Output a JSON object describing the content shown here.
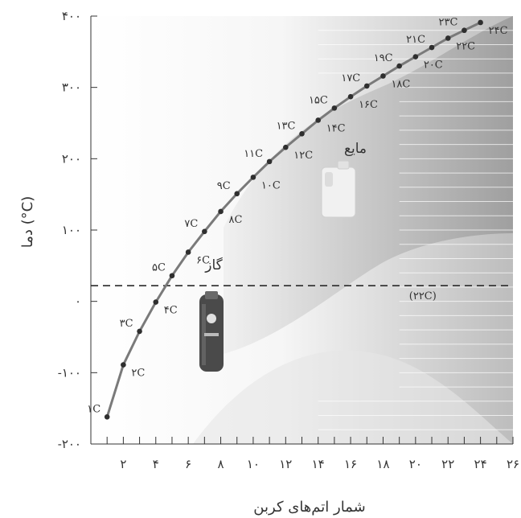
{
  "chart_data": {
    "type": "line",
    "xlabel": "شمار اتم‌های کربن",
    "ylabel": "دما (°C)",
    "xlim": [
      0,
      26
    ],
    "ylim": [
      -200,
      400
    ],
    "x_ticks": [
      {
        "v": 2,
        "label": "۲"
      },
      {
        "v": 4,
        "label": "۴"
      },
      {
        "v": 6,
        "label": "۶"
      },
      {
        "v": 8,
        "label": "۸"
      },
      {
        "v": 10,
        "label": "۱۰"
      },
      {
        "v": 12,
        "label": "۱۲"
      },
      {
        "v": 14,
        "label": "۱۴"
      },
      {
        "v": 16,
        "label": "۱۶"
      },
      {
        "v": 18,
        "label": "۱۸"
      },
      {
        "v": 20,
        "label": "۲۰"
      },
      {
        "v": 22,
        "label": "۲۲"
      },
      {
        "v": 24,
        "label": "۲۴"
      },
      {
        "v": 26,
        "label": "۲۶"
      }
    ],
    "y_ticks": [
      {
        "v": 400,
        "label": "۴۰۰"
      },
      {
        "v": 300,
        "label": "۳۰۰"
      },
      {
        "v": 200,
        "label": "۲۰۰"
      },
      {
        "v": 100,
        "label": "۱۰۰"
      },
      {
        "v": 0,
        "label": "۰"
      },
      {
        "v": -100,
        "label": "-۱۰۰"
      },
      {
        "v": -200,
        "label": "-۲۰۰"
      }
    ],
    "reference_line": {
      "y": 22,
      "label": "(۲۲C)"
    },
    "regions": {
      "liquid": "مایع",
      "gas": "گاز"
    },
    "series": [
      {
        "x": [
          1,
          2,
          3,
          4,
          5,
          6,
          7,
          8,
          9,
          10,
          11,
          12,
          13,
          14,
          15,
          16,
          17,
          18,
          19,
          20,
          21,
          22,
          23,
          24
        ],
        "values": [
          -162,
          -89,
          -42,
          -1,
          36,
          69,
          98,
          126,
          151,
          174,
          196,
          216,
          235,
          254,
          271,
          287,
          302,
          316,
          330,
          343,
          356,
          369,
          380,
          391
        ],
        "labels": [
          "۱C",
          "۲C",
          "۳C",
          "۴C",
          "۵C",
          "۶C",
          "۷C",
          "۸C",
          "۹C",
          "۱۰C",
          "۱۱C",
          "۱۲C",
          "۱۳C",
          "۱۴C",
          "۱۵C",
          "۱۶C",
          "۱۷C",
          "۱۸C",
          "۱۹C",
          "۲۰C",
          "۲۱C",
          "۲۲C",
          "۲۳C",
          "۲۴C"
        ]
      }
    ],
    "colors": {
      "line": "#7a7a7a",
      "points": "#2f2f2f",
      "region_dark": "#9e9e9e",
      "region_light": "#dcdcdc"
    },
    "grid": false
  }
}
